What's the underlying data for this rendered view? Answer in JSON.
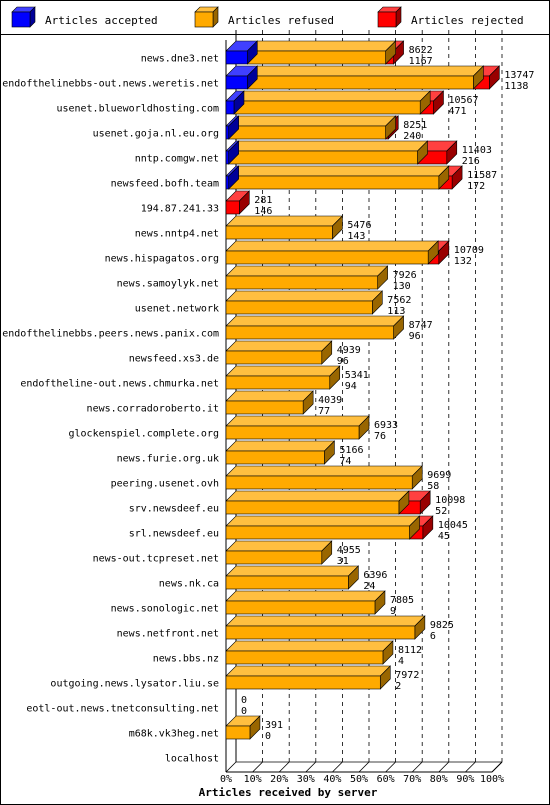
{
  "chart_data": {
    "type": "bar",
    "orientation": "horizontal",
    "stacked": true,
    "legend_placement": "top",
    "xlabel": "Articles received by server",
    "xticks": [
      "0%",
      "10%",
      "20%",
      "30%",
      "40%",
      "50%",
      "60%",
      "70%",
      "80%",
      "90%",
      "100%"
    ],
    "categories": [
      "news.dne3.net",
      "endofthelinebbs-out.news.weretis.net",
      "usenet.blueworldhosting.com",
      "usenet.goja.nl.eu.org",
      "nntp.comgw.net",
      "newsfeed.bofh.team",
      "194.87.241.33",
      "news.nntp4.net",
      "news.hispagatos.org",
      "news.samoylyk.net",
      "usenet.network",
      "endofthelinebbs.peers.news.panix.com",
      "newsfeed.xs3.de",
      "endoftheline-out.news.chmurka.net",
      "news.corradoroberto.it",
      "glockenspiel.complete.org",
      "news.furie.org.uk",
      "peering.usenet.ovh",
      "srv.newsdeef.eu",
      "srl.newsdeef.eu",
      "news-out.tcpreset.net",
      "news.nk.ca",
      "news.sonologic.net",
      "news.netfront.net",
      "news.bbs.nz",
      "outgoing.news.lysator.liu.se",
      "eotl-out.news.tnetconsulting.net",
      "m68k.vk3heg.net",
      "localhost"
    ],
    "totals_received": [
      "8622",
      "13747",
      "10567",
      "8251",
      "11403",
      "11587",
      "281",
      "5476",
      "10709",
      "7926",
      "7562",
      "8747",
      "4939",
      "5341",
      "4039",
      "6933",
      "5166",
      "9699",
      "10098",
      "10045",
      "4955",
      "6396",
      "7805",
      "9825",
      "8112",
      "7972",
      "0",
      "391",
      ""
    ],
    "totals_refused": [
      "1167",
      "1138",
      "471",
      "240",
      "216",
      "172",
      "146",
      "143",
      "132",
      "130",
      "113",
      "96",
      "96",
      "94",
      "77",
      "76",
      "74",
      "58",
      "52",
      "45",
      "31",
      "24",
      "9",
      "6",
      "4",
      "2",
      "0",
      "0",
      ""
    ],
    "series": [
      {
        "name": "Articles accepted",
        "color": "#0000ff",
        "values": [
          8,
          8,
          3,
          1,
          1,
          1,
          0,
          0,
          0,
          0,
          0,
          0,
          0,
          0,
          0,
          0,
          0,
          0,
          0,
          0,
          0,
          0,
          0,
          0,
          0,
          0,
          0,
          0,
          0
        ]
      },
      {
        "name": "Articles refused",
        "color": "#ffaa00",
        "values": [
          52,
          85,
          70,
          59,
          71,
          79,
          0,
          40,
          76,
          57,
          55,
          63,
          36,
          39,
          29,
          50,
          37,
          70,
          65,
          69,
          36,
          46,
          56,
          71,
          59,
          58,
          0,
          9,
          0
        ]
      },
      {
        "name": "Articles rejected",
        "color": "#ff0000",
        "values": [
          3,
          6,
          5,
          1,
          11,
          5,
          5,
          0,
          4,
          0,
          0,
          0,
          0,
          0,
          0,
          0,
          0,
          0,
          8,
          5,
          0,
          0,
          0,
          0,
          0,
          0,
          0,
          0,
          0
        ]
      }
    ],
    "xlim": [
      0,
      100
    ],
    "grid": true
  }
}
